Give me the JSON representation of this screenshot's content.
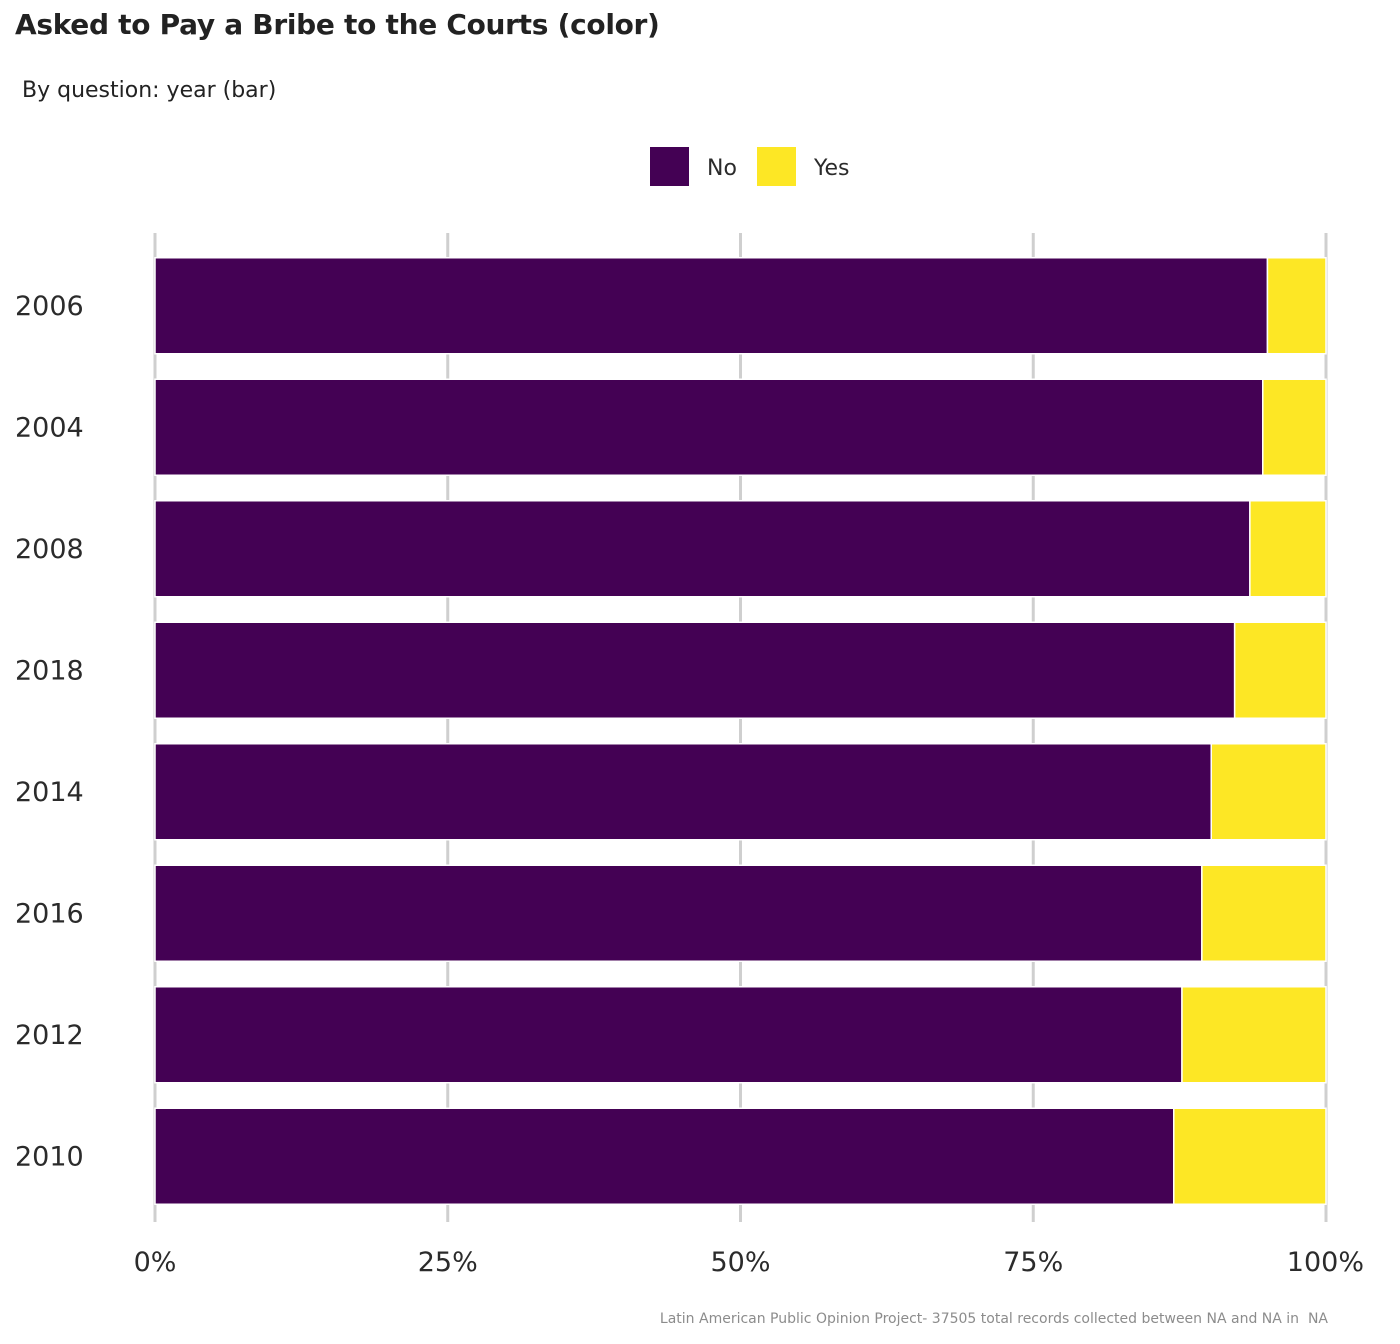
{
  "chart_data": {
    "type": "bar",
    "orientation": "horizontal",
    "stacked": true,
    "stacked_to_percent": true,
    "title": "Asked to Pay a Bribe to the Courts (color)",
    "subtitle": "By question: year (bar)",
    "categories": [
      "2006",
      "2004",
      "2008",
      "2018",
      "2014",
      "2016",
      "2012",
      "2010"
    ],
    "series": [
      {
        "name": "No",
        "color": "#440154",
        "values": [
          95.0,
          94.6,
          93.5,
          92.2,
          90.2,
          89.4,
          87.7,
          87.0
        ]
      },
      {
        "name": "Yes",
        "color": "#FDE725",
        "values": [
          5.0,
          5.4,
          6.5,
          7.8,
          9.8,
          10.6,
          12.3,
          13.0
        ]
      }
    ],
    "xlim": [
      0,
      100
    ],
    "x_ticks": [
      "0%",
      "25%",
      "50%",
      "75%",
      "100%"
    ],
    "x_tick_values": [
      0,
      25,
      50,
      75,
      100
    ],
    "grid": "vertical major",
    "legend_position": "top",
    "caption": "Latin American Public Opinion Project- 37505 total records collected between NA and NA in  NA"
  }
}
